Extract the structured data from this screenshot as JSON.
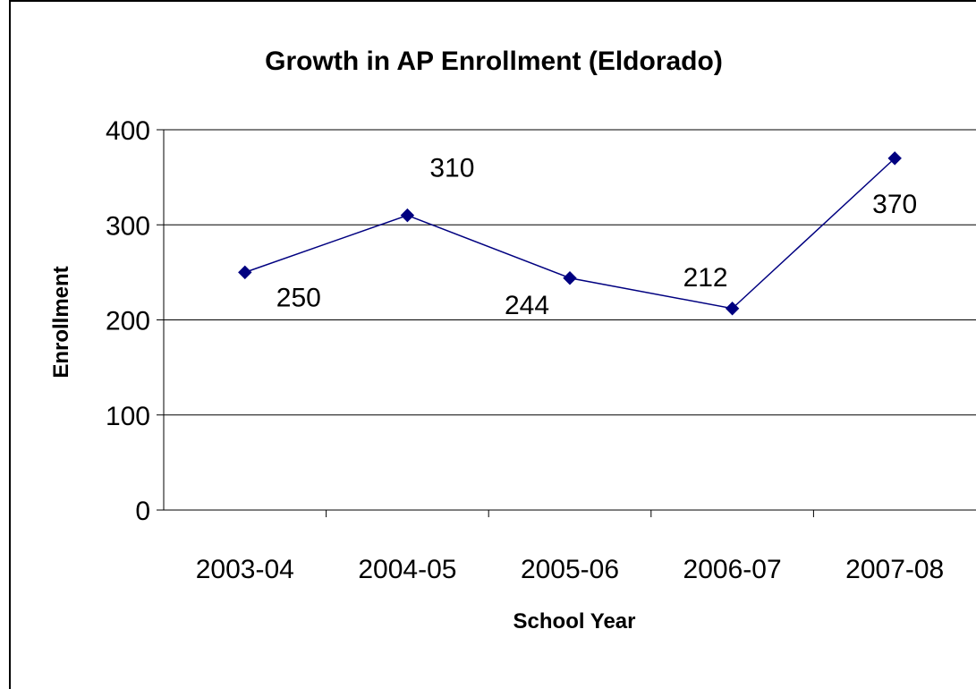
{
  "chart_data": {
    "type": "line",
    "title": "Growth in AP Enrollment (Eldorado)",
    "xlabel": "School Year",
    "ylabel": "Enrollment",
    "categories": [
      "2003-04",
      "2004-05",
      "2005-06",
      "2006-07",
      "2007-08"
    ],
    "series": [
      {
        "values": [
          250,
          310,
          244,
          212,
          370
        ],
        "color": "#000080"
      }
    ],
    "data_labels": [
      "250",
      "310",
      "244",
      "212",
      "370"
    ],
    "ylim": [
      0,
      400
    ],
    "yticks": [
      0,
      100,
      200,
      300,
      400
    ],
    "ytick_labels": [
      "0",
      "100",
      "200",
      "300",
      "400"
    ],
    "grid": "horizontal",
    "legend": "none",
    "marker": "diamond"
  }
}
